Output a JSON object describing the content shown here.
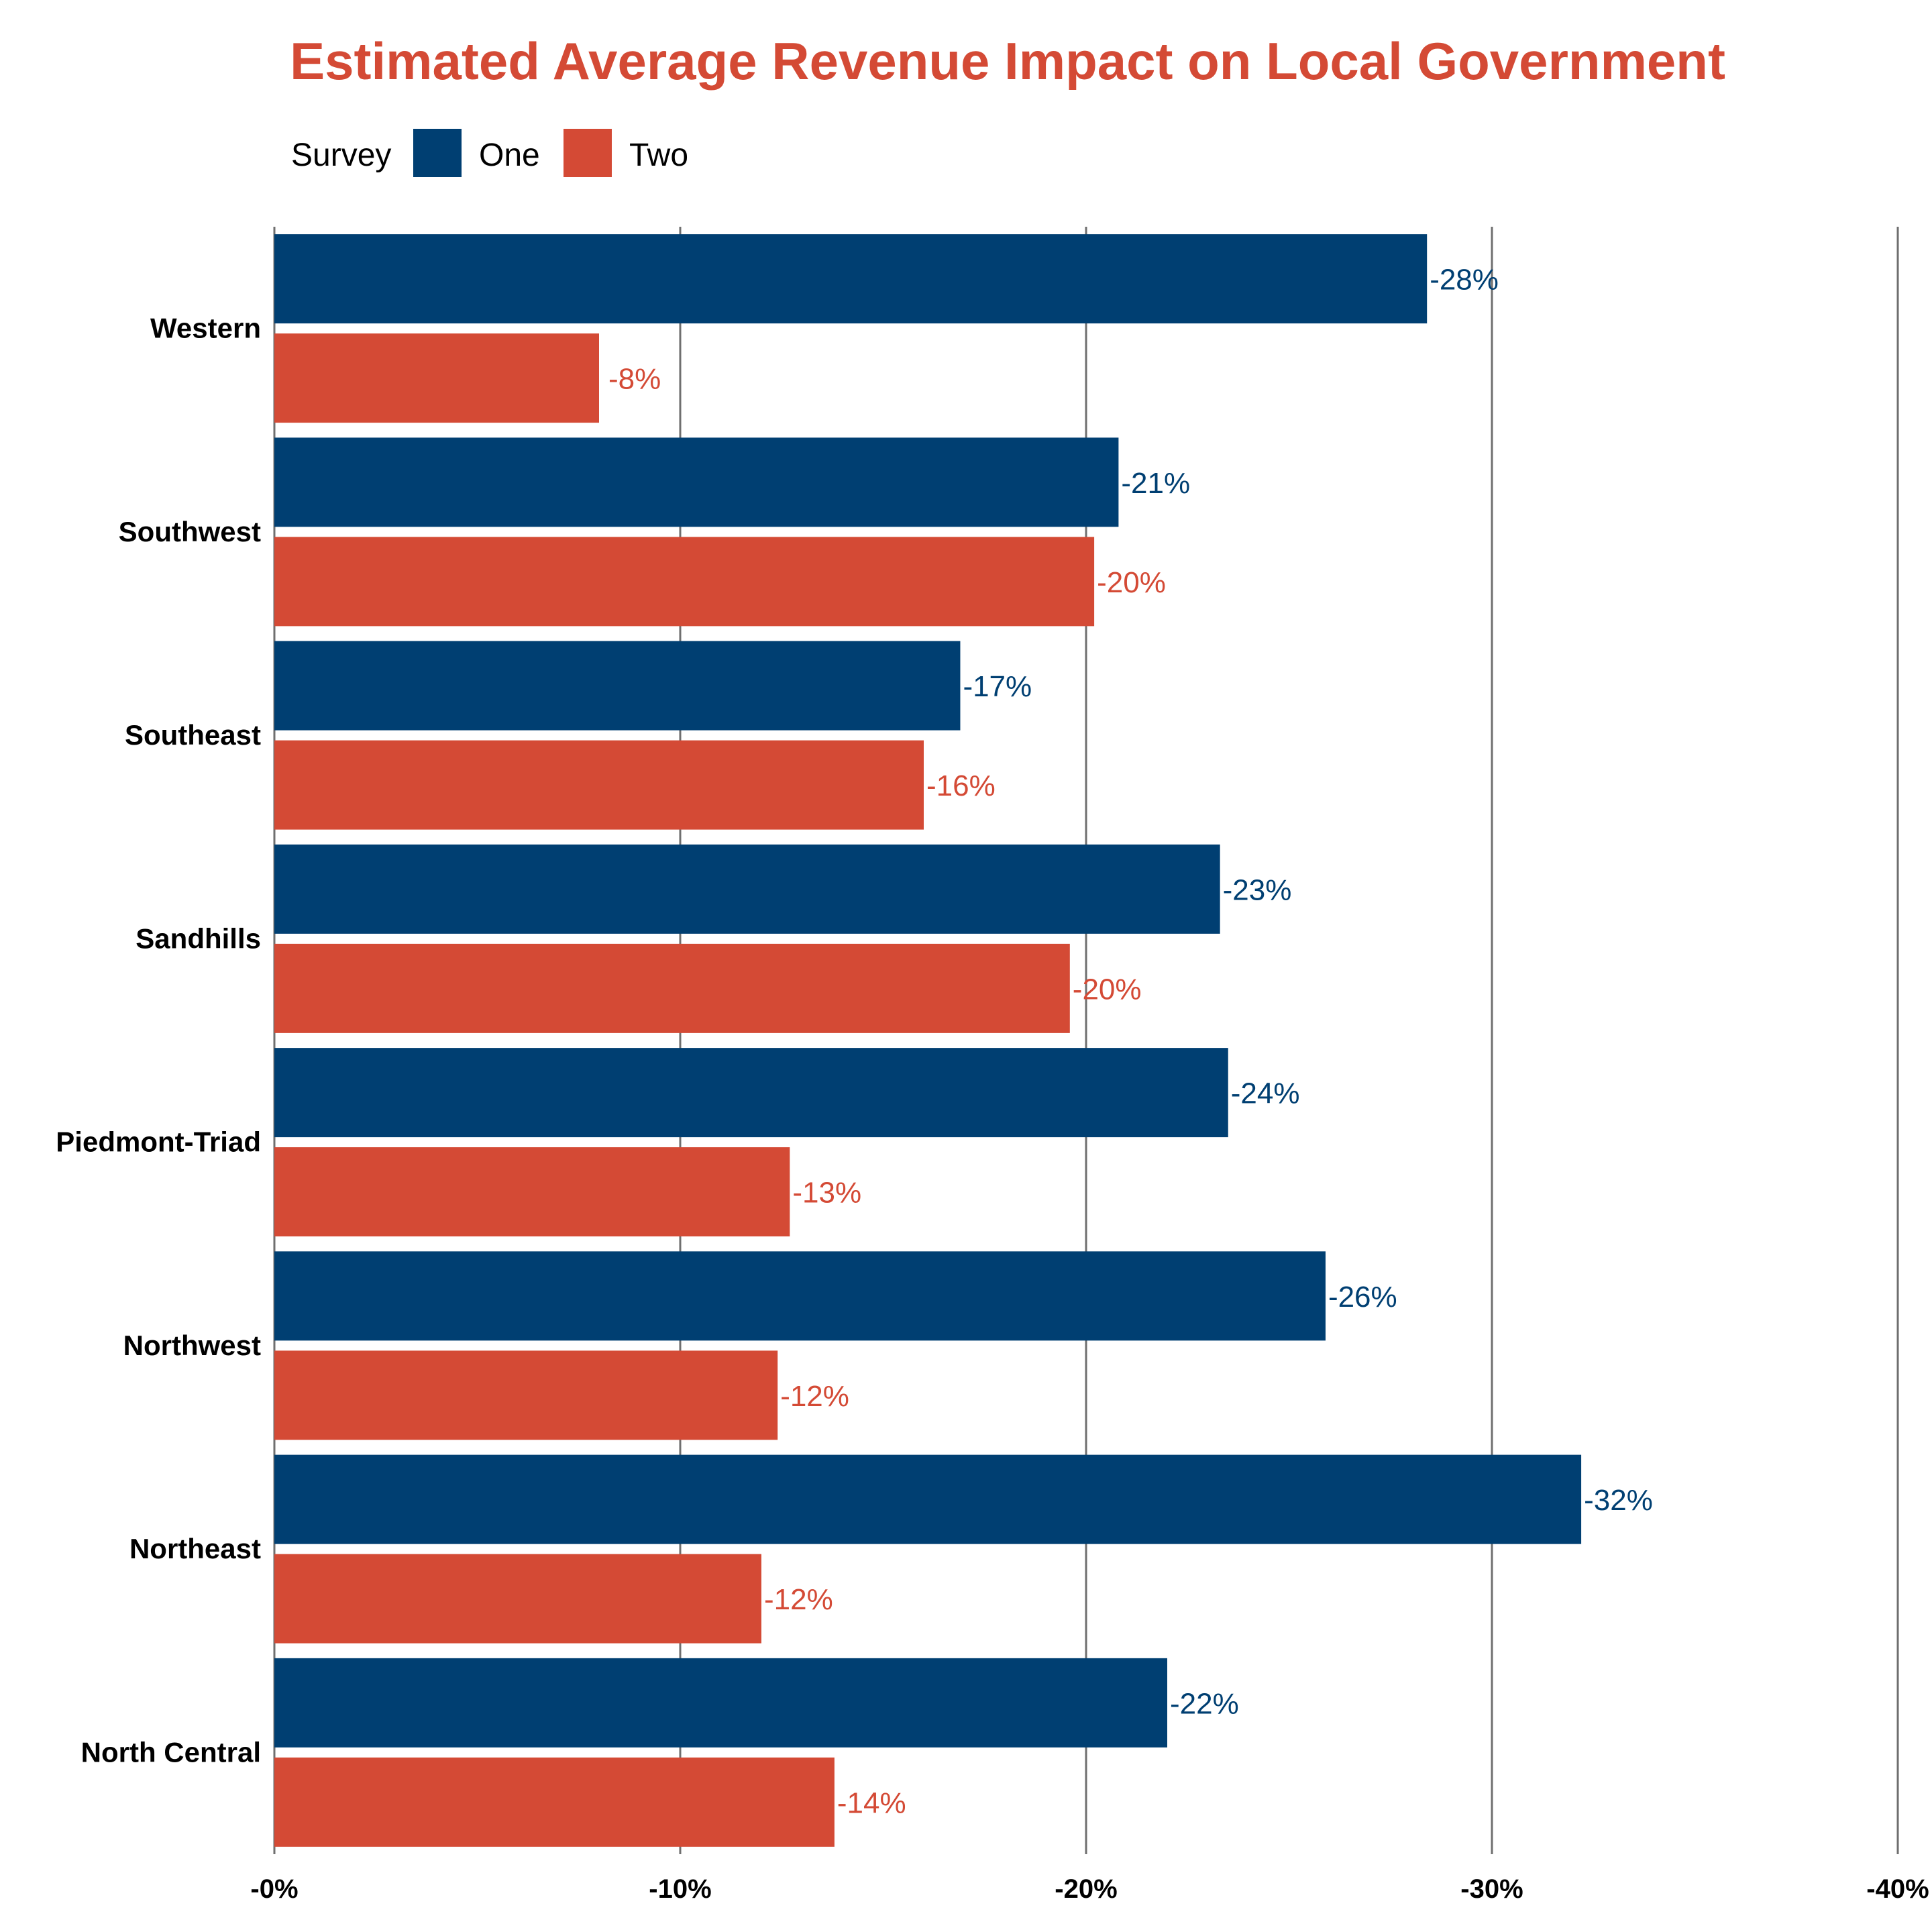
{
  "colors": {
    "title": "#D44A35",
    "one": "#003F72",
    "two": "#D44A35",
    "grid": "#6F6F6F"
  },
  "chart_data": {
    "type": "bar",
    "orientation": "horizontal",
    "title": "Estimated Average Revenue Impact on Local Government",
    "legend": {
      "title": "Survey",
      "position": "top-left"
    },
    "categories": [
      "Western",
      "Southwest",
      "Southeast",
      "Sandhills",
      "Piedmont-Triad",
      "Northwest",
      "Northeast",
      "North Central"
    ],
    "series": [
      {
        "name": "One",
        "values": [
          -28.4,
          -20.8,
          -16.9,
          -23.3,
          -23.5,
          -25.9,
          -32.2,
          -22.0
        ],
        "labels": [
          "-28%",
          "-21%",
          "-17%",
          "-23%",
          "-24%",
          "-26%",
          "-32%",
          "-22%"
        ]
      },
      {
        "name": "Two",
        "values": [
          -8.0,
          -20.2,
          -16.0,
          -19.6,
          -12.7,
          -12.4,
          -12.0,
          -13.8
        ],
        "labels": [
          "-8%",
          "-20%",
          "-16%",
          "-20%",
          "-13%",
          "-12%",
          "-12%",
          "-14%"
        ]
      }
    ],
    "xlim": [
      0,
      -40
    ],
    "xticks": [
      0,
      -10,
      -20,
      -30,
      -40
    ],
    "xtick_labels": [
      "-0%",
      "-10%",
      "-20%",
      "-30%",
      "-40%"
    ],
    "grid": "vertical major",
    "xlabel": "",
    "ylabel": ""
  }
}
